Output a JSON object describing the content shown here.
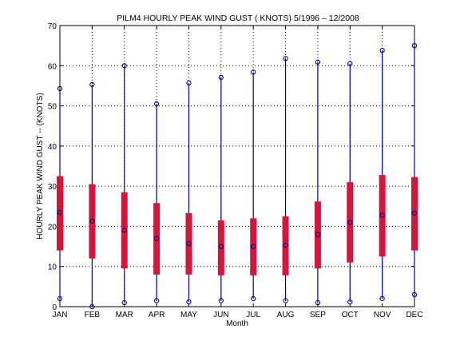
{
  "chart_data": {
    "type": "boxplot",
    "title": "PILM4  HOURLY PEAK WIND GUST ( KNOTS) 5/1996 – 12/2008",
    "xlabel": "Month",
    "ylabel": "HOURLY PEAK WIND GUST -- (KNOTS)",
    "ylim": [
      0,
      70
    ],
    "yticks": [
      0,
      10,
      20,
      30,
      40,
      50,
      60,
      70
    ],
    "grid": true,
    "categories": [
      "JAN",
      "FEB",
      "MAR",
      "APR",
      "MAY",
      "JUN",
      "JUL",
      "AUG",
      "SEP",
      "OCT",
      "NOV",
      "DEC"
    ],
    "series": [
      {
        "name": "min",
        "values": [
          2,
          0,
          1,
          1.5,
          1.2,
          1.5,
          2,
          1.5,
          1,
          1.2,
          2,
          3
        ]
      },
      {
        "name": "p25",
        "values": [
          14,
          12,
          9.5,
          8,
          8,
          7.8,
          7.8,
          7.8,
          9.5,
          11,
          12.5,
          14
        ]
      },
      {
        "name": "mean",
        "values": [
          23.5,
          21.3,
          19,
          17,
          15.7,
          15,
          15,
          15.3,
          18,
          21,
          22.8,
          23.3
        ]
      },
      {
        "name": "p75",
        "values": [
          32.5,
          30.5,
          28.5,
          25.8,
          23.3,
          21.5,
          22,
          22.5,
          26.2,
          31,
          32.8,
          32.3
        ]
      },
      {
        "name": "max",
        "values": [
          54.3,
          55.3,
          60,
          50.5,
          55.7,
          57.1,
          58.4,
          61.8,
          60.9,
          60.5,
          63.8,
          65
        ]
      }
    ],
    "colors": {
      "whisker": "#0000a0",
      "box": "#d8143c",
      "marker": "#000080"
    }
  }
}
